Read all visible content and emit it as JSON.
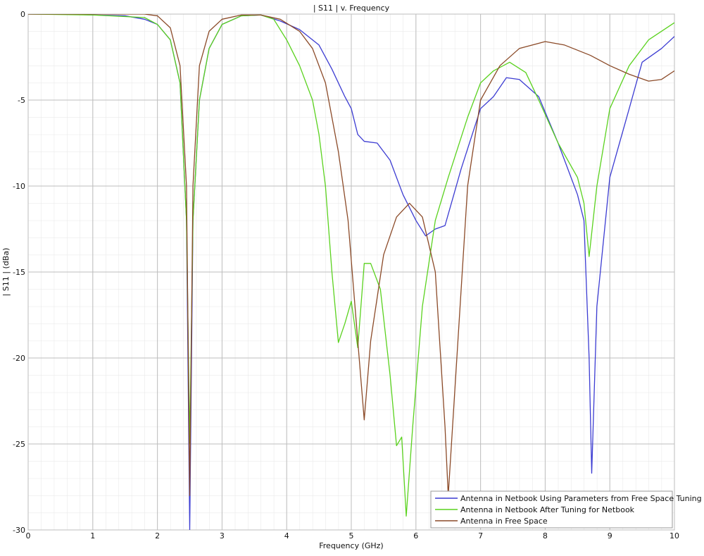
{
  "chart_data": {
    "type": "line",
    "title": "| S11 | v. Frequency",
    "x_label": "Frequency (GHz)",
    "y_label": "| S11 | (dBa)",
    "xlim": [
      0,
      10
    ],
    "ylim": [
      -30,
      0
    ],
    "xticks": [
      0,
      1,
      2,
      3,
      4,
      5,
      6,
      7,
      8,
      9,
      10
    ],
    "yticks": [
      -30,
      -25,
      -20,
      -15,
      -10,
      -5,
      0
    ],
    "grid": true,
    "legend": "lower right",
    "series": [
      {
        "name": "Antenna in Netbook Using Parameters from Free Space Tuning",
        "color": "#3c3cd2",
        "x": [
          0,
          0.5,
          1,
          1.5,
          1.8,
          2.0,
          2.2,
          2.35,
          2.45,
          2.5,
          2.55,
          2.65,
          2.8,
          3.0,
          3.3,
          3.6,
          3.9,
          4.2,
          4.5,
          4.7,
          4.9,
          5.0,
          5.1,
          5.2,
          5.4,
          5.6,
          5.8,
          6.0,
          6.15,
          6.3,
          6.45,
          6.7,
          7.0,
          7.2,
          7.4,
          7.6,
          7.9,
          8.2,
          8.5,
          8.6,
          8.68,
          8.72,
          8.8,
          9.0,
          9.3,
          9.5,
          9.8,
          10
        ],
        "values": [
          0,
          0,
          -0.05,
          -0.1,
          -0.3,
          -0.6,
          -1.5,
          -4,
          -12,
          -30,
          -12,
          -5,
          -2,
          -0.6,
          -0.1,
          -0.05,
          -0.4,
          -0.9,
          -1.8,
          -3.2,
          -4.8,
          -5.5,
          -7.0,
          -7.4,
          -7.5,
          -8.5,
          -10.5,
          -12.0,
          -12.9,
          -12.5,
          -12.3,
          -9,
          -5.5,
          -4.8,
          -3.7,
          -3.8,
          -4.8,
          -7.5,
          -10.5,
          -12,
          -20,
          -26.7,
          -17,
          -9.5,
          -5.5,
          -2.8,
          -2,
          -1.3
        ]
      },
      {
        "name": "Antenna in Netbook After Tuning for Netbook",
        "color": "#5ad21e",
        "x": [
          0,
          1,
          1.8,
          2.0,
          2.2,
          2.35,
          2.45,
          2.5,
          2.55,
          2.65,
          2.8,
          3.0,
          3.3,
          3.6,
          3.8,
          4.0,
          4.2,
          4.4,
          4.5,
          4.6,
          4.7,
          4.8,
          4.9,
          5.0,
          5.1,
          5.2,
          5.3,
          5.45,
          5.6,
          5.7,
          5.78,
          5.85,
          5.95,
          6.1,
          6.3,
          6.5,
          6.8,
          7.0,
          7.2,
          7.45,
          7.7,
          7.9,
          8.2,
          8.5,
          8.6,
          8.68,
          8.8,
          9.0,
          9.3,
          9.6,
          10
        ],
        "values": [
          0,
          -0.05,
          -0.2,
          -0.6,
          -1.5,
          -4,
          -12,
          -25,
          -12,
          -5,
          -2,
          -0.6,
          -0.1,
          -0.05,
          -0.3,
          -1.5,
          -3,
          -5,
          -7,
          -10,
          -15,
          -19.1,
          -18,
          -16.7,
          -19.4,
          -14.5,
          -14.5,
          -16,
          -21,
          -25.1,
          -24.6,
          -29.2,
          -24,
          -17,
          -12,
          -9.5,
          -6,
          -4,
          -3.3,
          -2.8,
          -3.4,
          -5,
          -7.5,
          -9.5,
          -11,
          -14.1,
          -10,
          -5.5,
          -3,
          -1.5,
          -0.5
        ]
      },
      {
        "name": "Antenna in Free Space",
        "color": "#8b4a28",
        "x": [
          0,
          1,
          1.8,
          2.0,
          2.2,
          2.35,
          2.45,
          2.5,
          2.55,
          2.65,
          2.8,
          3.0,
          3.3,
          3.6,
          3.9,
          4.2,
          4.4,
          4.6,
          4.8,
          4.95,
          5.1,
          5.2,
          5.3,
          5.5,
          5.7,
          5.9,
          6.1,
          6.3,
          6.45,
          6.5,
          6.6,
          6.8,
          7.0,
          7.3,
          7.6,
          8.0,
          8.3,
          8.7,
          9.0,
          9.3,
          9.6,
          9.8,
          10
        ],
        "values": [
          0,
          0,
          0,
          -0.1,
          -0.8,
          -3,
          -10,
          -28,
          -10,
          -3,
          -1,
          -0.3,
          -0.05,
          -0.05,
          -0.3,
          -1,
          -2,
          -4,
          -8,
          -12,
          -19,
          -23.6,
          -19,
          -14,
          -11.8,
          -11,
          -11.8,
          -15,
          -24,
          -28,
          -22,
          -10,
          -5,
          -3,
          -2,
          -1.6,
          -1.8,
          -2.4,
          -3,
          -3.5,
          -3.9,
          -3.8,
          -3.3
        ]
      }
    ]
  }
}
